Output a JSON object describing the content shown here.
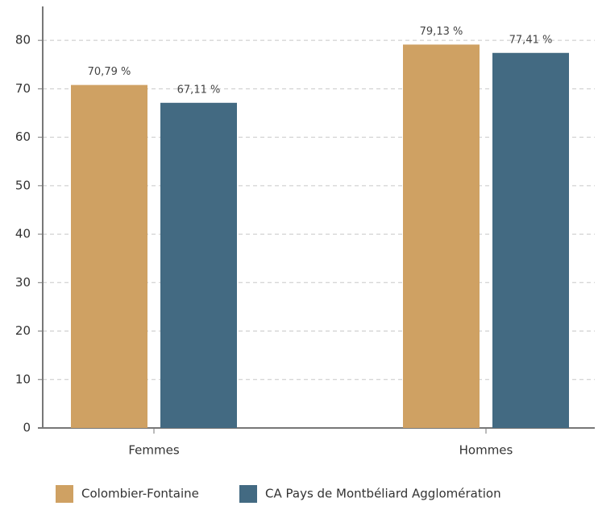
{
  "chart_data": {
    "type": "bar",
    "categories": [
      "Femmes",
      "Hommes"
    ],
    "series": [
      {
        "name": "Colombier-Fontaine",
        "color": "#cfa163",
        "values": [
          70.79,
          79.13
        ],
        "value_labels": [
          "70,79 %",
          "79,13 %"
        ]
      },
      {
        "name": "CA Pays de Montbéliard Agglomération",
        "color": "#436a82",
        "values": [
          67.11,
          77.41
        ],
        "value_labels": [
          "67,11 %",
          "77,41 %"
        ]
      }
    ],
    "ylim": [
      0,
      87
    ],
    "yticks": [
      0,
      10,
      20,
      30,
      40,
      50,
      60,
      70,
      80
    ],
    "grid": true,
    "legend": "bottom"
  }
}
